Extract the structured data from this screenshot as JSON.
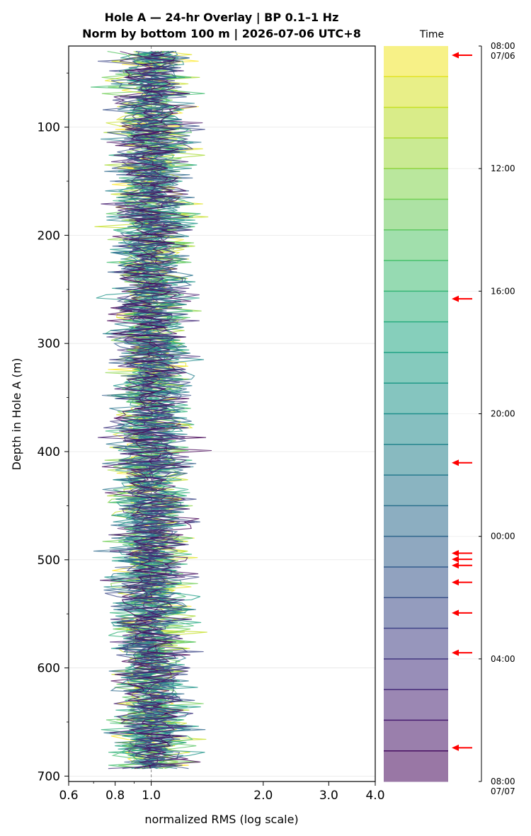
{
  "chart_data": {
    "type": "line",
    "title_line1": "Hole A — 24-hr Overlay  |  BP 0.1–1 Hz",
    "title_line2": "Norm by bottom 100 m  |  2026-07-06 UTC+8",
    "xlabel": "normalized RMS  (log scale)",
    "ylabel": "Depth in Hole A (m)",
    "x_scale": "log",
    "xlim": [
      0.6,
      4.0
    ],
    "x_ticks": [
      0.6,
      0.8,
      1.0,
      2.0,
      3.0,
      4.0
    ],
    "x_tick_labels": [
      "0.6",
      "0.8",
      "1.0",
      "2.0",
      "3.0",
      "4.0"
    ],
    "ylim": [
      25,
      705
    ],
    "y_inverted": true,
    "y_ticks": [
      100,
      200,
      300,
      400,
      500,
      600,
      700
    ],
    "y_tick_labels": [
      "100",
      "200",
      "300",
      "400",
      "500",
      "600",
      "700"
    ],
    "depth_range": [
      30,
      693
    ],
    "depth_step": 3,
    "reference_x": 1.0,
    "grid": "horizontal at major depth ticks",
    "colormap": "viridis",
    "series_count": 24,
    "series_hours": [
      "08:00",
      "09:00",
      "10:00",
      "11:00",
      "12:00",
      "13:00",
      "14:00",
      "15:00",
      "16:00",
      "17:00",
      "18:00",
      "19:00",
      "20:00",
      "21:00",
      "22:00",
      "23:00",
      "00:00",
      "01:00",
      "02:00",
      "03:00",
      "04:00",
      "05:00",
      "06:00",
      "07:00"
    ],
    "series_note": "24 hourly normalized-RMS depth profiles, values scattered around 1.0 (approx. 0.68–1.80)",
    "colorbar": {
      "label": "Time",
      "range": [
        "2026-07-06 08:00",
        "2026-07-07 08:00"
      ],
      "tick_labels": [
        {
          "main": "08:00",
          "sub": "07/06"
        },
        {
          "main": "12:00",
          "sub": ""
        },
        {
          "main": "16:00",
          "sub": ""
        },
        {
          "main": "20:00",
          "sub": ""
        },
        {
          "main": "00:00",
          "sub": ""
        },
        {
          "main": "04:00",
          "sub": ""
        },
        {
          "main": "08:00",
          "sub": "07/07"
        }
      ],
      "tick_hours": [
        0,
        4,
        8,
        12,
        16,
        20,
        24
      ],
      "event_arrows_hours": [
        0.3,
        8.25,
        13.6,
        16.55,
        16.75,
        16.95,
        17.5,
        18.5,
        19.8,
        22.9
      ]
    }
  }
}
